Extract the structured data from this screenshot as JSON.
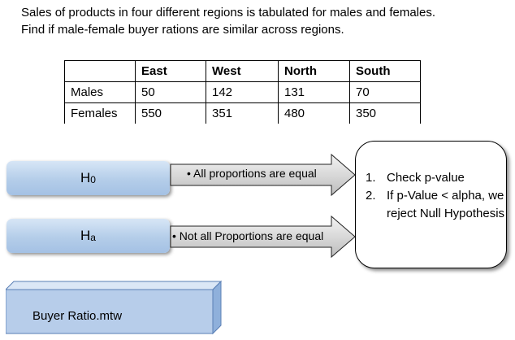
{
  "intro": {
    "line1": "Sales of products in four different regions is tabulated for males and females.",
    "line2": "Find if male-female buyer rations are similar across regions."
  },
  "table": {
    "headers": [
      "",
      "East",
      "West",
      "North",
      "South"
    ],
    "rows": [
      [
        "Males",
        "50",
        "142",
        "131",
        "70"
      ],
      [
        "Females",
        "550",
        "351",
        "480",
        "350"
      ]
    ]
  },
  "hypotheses": {
    "h0": {
      "main": "H",
      "sub": "0",
      "statement": "• All proportions are equal"
    },
    "ha": {
      "main": "H",
      "sub": "a",
      "statement": "• Not all Proportions are equal"
    }
  },
  "steps": {
    "items": [
      {
        "num": "1.",
        "text": "Check p-value"
      },
      {
        "num": "2.",
        "text": "If p-Value < alpha, we reject Null Hypothesis"
      }
    ]
  },
  "file": {
    "label": "Buyer Ratio.mtw"
  },
  "colors": {
    "box_gradient_top": "#d7e6f6",
    "box_gradient_bottom": "#a4c1e4",
    "arrow_light": "#f2f2f2",
    "arrow_dark": "#bfbfbf",
    "file_front": "#b7cdea",
    "file_top": "#dbe7f6",
    "file_side": "#8fb0db"
  }
}
